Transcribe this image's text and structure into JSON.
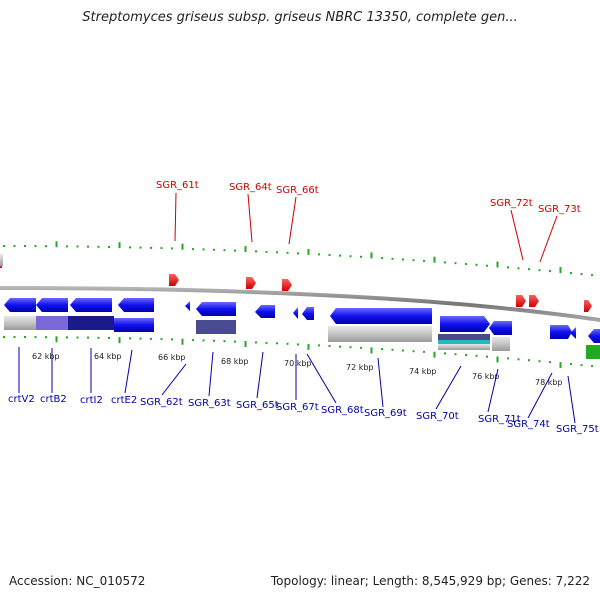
{
  "title": "Streptomyces griseus subsp. griseus NBRC 13350, complete gen...",
  "footer": {
    "accession": "Accession: NC_010572",
    "topology": "Topology: linear; Length: 8,545,929 bp; Genes: 7,222"
  },
  "colors": {
    "trna": "#cc0000",
    "gene": "#0000ee",
    "gene_label": "#0000aa",
    "ticks": "#22aa22",
    "backbone": "#888888",
    "rrna": "#22aa22"
  },
  "scale_ticks": [
    "62 kbp",
    "64 kbp",
    "66 kbp",
    "68 kbp",
    "70 kbp",
    "72 kbp",
    "74 kbp",
    "76 kbp",
    "78 kbp"
  ],
  "trna_labels": [
    "SGR_61t",
    "SGR_64t",
    "SGR_66t",
    "SGR_72t",
    "SGR_73t"
  ],
  "gene_labels": [
    "crtV2",
    "crtB2",
    "crtI2",
    "crtE2",
    "SGR_62t",
    "SGR_63t",
    "SGR_65t",
    "SGR_67t",
    "SGR_68t",
    "SGR_69t",
    "SGR_70t",
    "SGR_71t",
    "SGR_74t",
    "SGR_75t"
  ]
}
